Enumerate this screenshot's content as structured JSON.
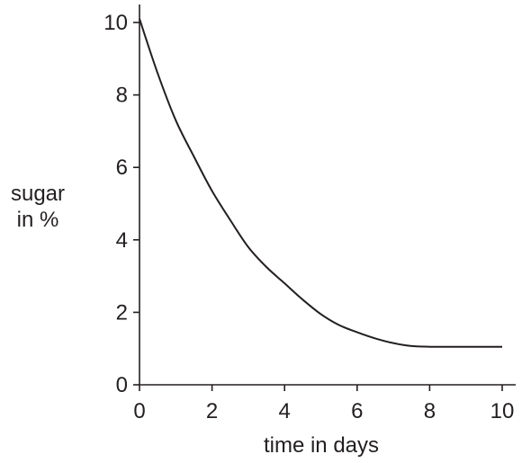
{
  "chart_data": {
    "type": "line",
    "title": "",
    "xlabel": "time in days",
    "ylabel_lines": [
      "sugar",
      "in %"
    ],
    "xlim": [
      0,
      10
    ],
    "ylim": [
      0,
      10
    ],
    "x_ticks": [
      0,
      2,
      4,
      6,
      8,
      10
    ],
    "y_ticks": [
      0,
      2,
      4,
      6,
      8,
      10
    ],
    "grid": false,
    "series": [
      {
        "x": [
          0,
          0.5,
          1,
          1.5,
          2,
          2.5,
          3,
          3.5,
          4,
          4.5,
          5,
          5.5,
          6,
          6.5,
          7,
          7.5,
          8,
          9,
          10
        ],
        "y": [
          10.1,
          8.6,
          7.3,
          6.3,
          5.35,
          4.55,
          3.8,
          3.25,
          2.8,
          2.35,
          1.95,
          1.65,
          1.45,
          1.28,
          1.15,
          1.07,
          1.05,
          1.05,
          1.05
        ]
      }
    ],
    "colors": {
      "ink": "#231f20"
    }
  }
}
